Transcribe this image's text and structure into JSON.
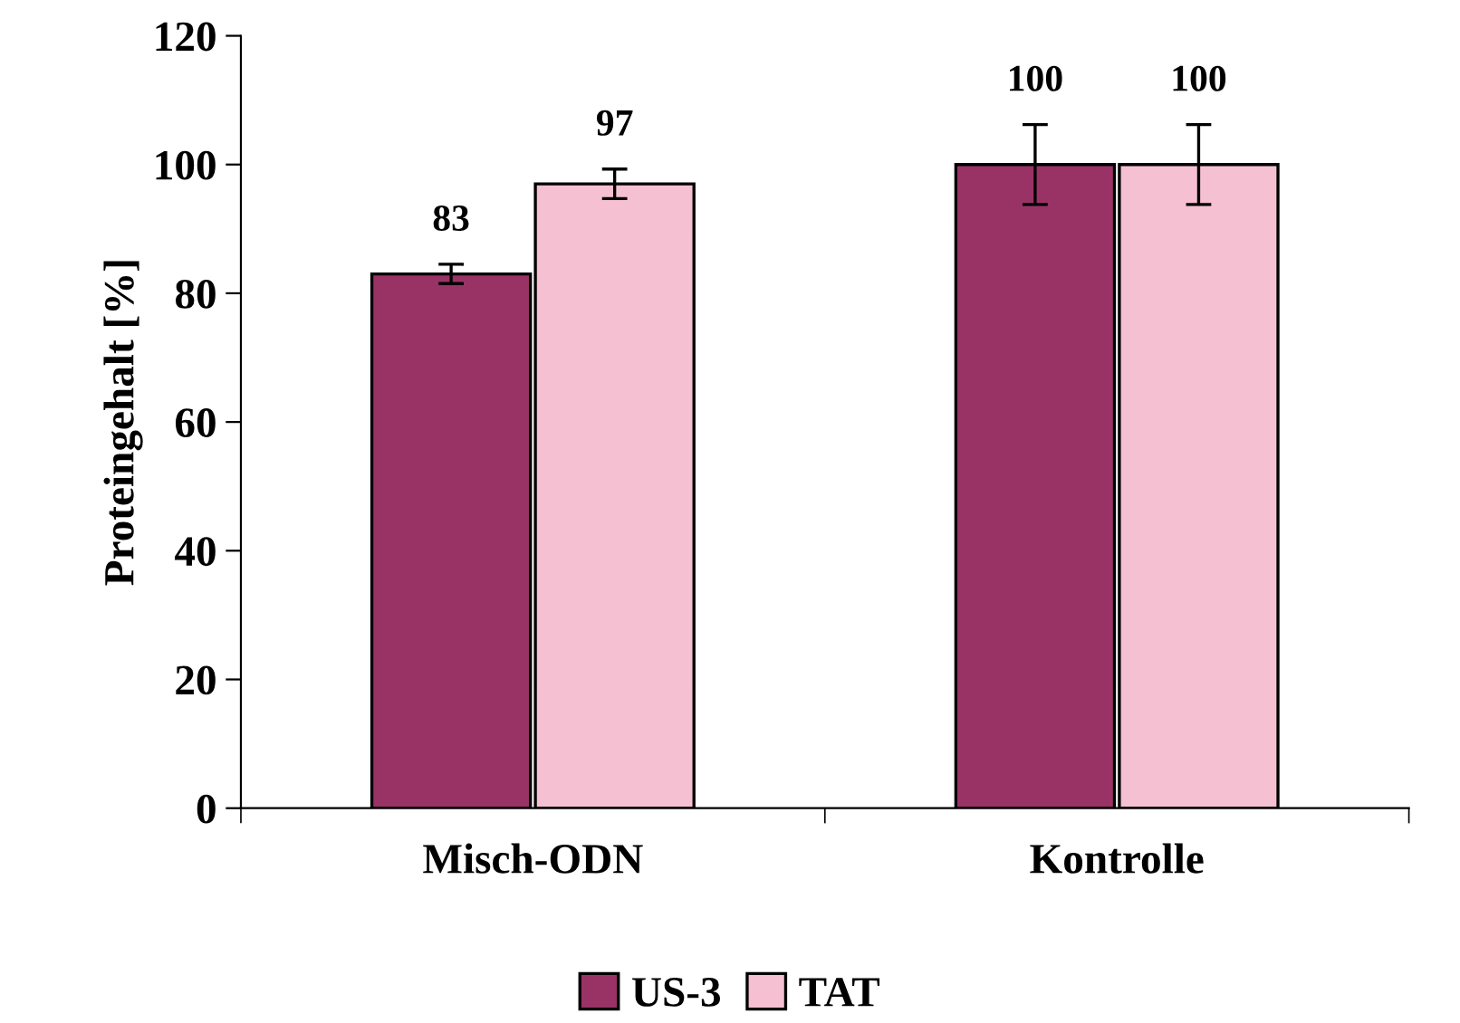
{
  "chart_data": {
    "type": "bar",
    "ylabel": "Proteingehalt [%]",
    "categories": [
      "Misch-ODN",
      "Kontrolle"
    ],
    "series": [
      {
        "name": "US-3",
        "color": "#993366",
        "values": [
          83,
          100
        ],
        "errors": [
          1.5,
          6.2
        ]
      },
      {
        "name": "TAT",
        "color": "#f5c0d2",
        "values": [
          97,
          100
        ],
        "errors": [
          2.3,
          6.2
        ]
      }
    ],
    "ylim": [
      0,
      120
    ],
    "yticks": [
      0,
      20,
      40,
      60,
      80,
      100,
      120
    ],
    "grid": false,
    "legend": "bottom",
    "data_labels": true
  }
}
